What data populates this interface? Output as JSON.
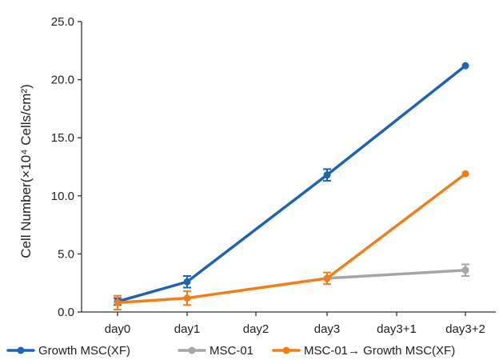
{
  "chart_data": {
    "type": "line",
    "categories": [
      "day0",
      "day1",
      "day2",
      "day3",
      "day3+1",
      "day3+2"
    ],
    "ylabel": "Cell Number(×10⁴ Cells/cm²)",
    "xlabel": "",
    "ylim": [
      0,
      25
    ],
    "yticks": [
      "0.0",
      "5.0",
      "10.0",
      "15.0",
      "20.0",
      "25.0"
    ],
    "grid": false,
    "legend_position": "bottom",
    "series": [
      {
        "name": "Growth MSC(XF)",
        "color": "#1f63b5",
        "values": [
          0.9,
          2.6,
          null,
          11.8,
          null,
          21.2
        ],
        "errors": [
          0.3,
          0.5,
          null,
          0.5,
          null,
          0.0
        ]
      },
      {
        "name": "MSC-01",
        "color": "#a6a6a6",
        "values": [
          null,
          null,
          null,
          2.9,
          null,
          3.6
        ],
        "errors": [
          null,
          null,
          null,
          0.0,
          null,
          0.5
        ]
      },
      {
        "name": "MSC-01→ Growth MSC(XF)",
        "color": "#f07f1a",
        "values": [
          0.8,
          1.2,
          null,
          2.9,
          null,
          11.9
        ],
        "errors": [
          0.6,
          0.6,
          null,
          0.5,
          null,
          0.0
        ]
      }
    ]
  }
}
